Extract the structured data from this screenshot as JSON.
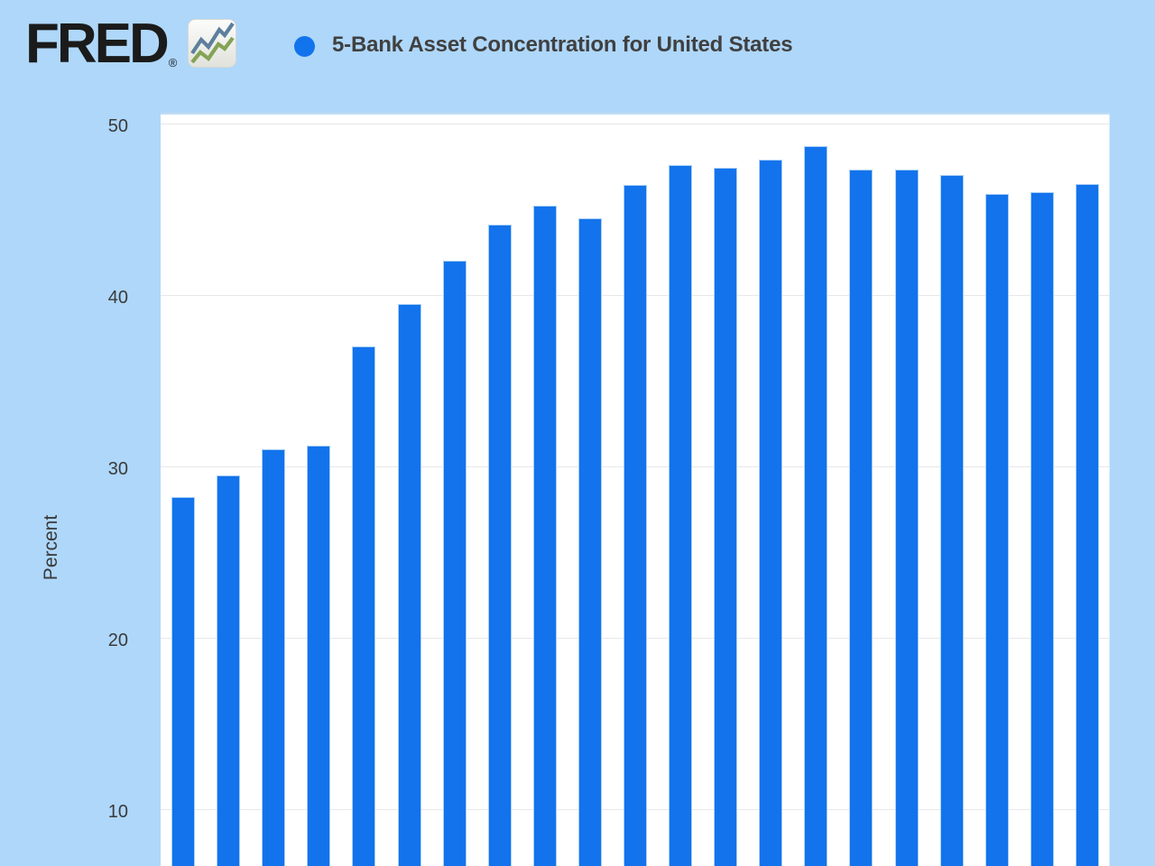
{
  "page": {
    "background": "#aed7fa"
  },
  "header": {
    "logo_text": "FRED",
    "logo_registered_mark": "®",
    "legend_marker_color": "#1274ec",
    "title": "5-Bank Asset Concentration for United States"
  },
  "y_axis": {
    "label": "Percent"
  },
  "chart_data": {
    "type": "bar",
    "title": "5-Bank Asset Concentration for United States",
    "ylabel": "Percent",
    "xlabel": "",
    "x_tick_labels_visible": false,
    "y_ticks": [
      50,
      40,
      30,
      20,
      10
    ],
    "ylim_visible": [
      6.8,
      50.6
    ],
    "grid": true,
    "legend_position": "top-header",
    "units": "Percent",
    "series": [
      {
        "name": "5-Bank Asset Concentration for United States",
        "color": "#1273ec",
        "values": [
          28.2,
          29.5,
          31.0,
          31.2,
          37.0,
          39.5,
          42.0,
          44.1,
          45.2,
          44.5,
          46.4,
          47.6,
          47.4,
          47.9,
          48.7,
          47.3,
          47.3,
          47.0,
          45.9,
          46.0,
          46.5
        ]
      }
    ]
  },
  "colors": {
    "background": "#aed7fa",
    "plot_background": "#ffffff",
    "plot_top_edge": "#c2dcf4",
    "gridline": "#e8e8e8",
    "bar": "#1273ec",
    "axis_text": "#3a3a3a",
    "title_text": "#404040",
    "logo_text": "#1b1b1b",
    "icon_line_blue": "#5c7f9d",
    "icon_line_green": "#83a356"
  }
}
